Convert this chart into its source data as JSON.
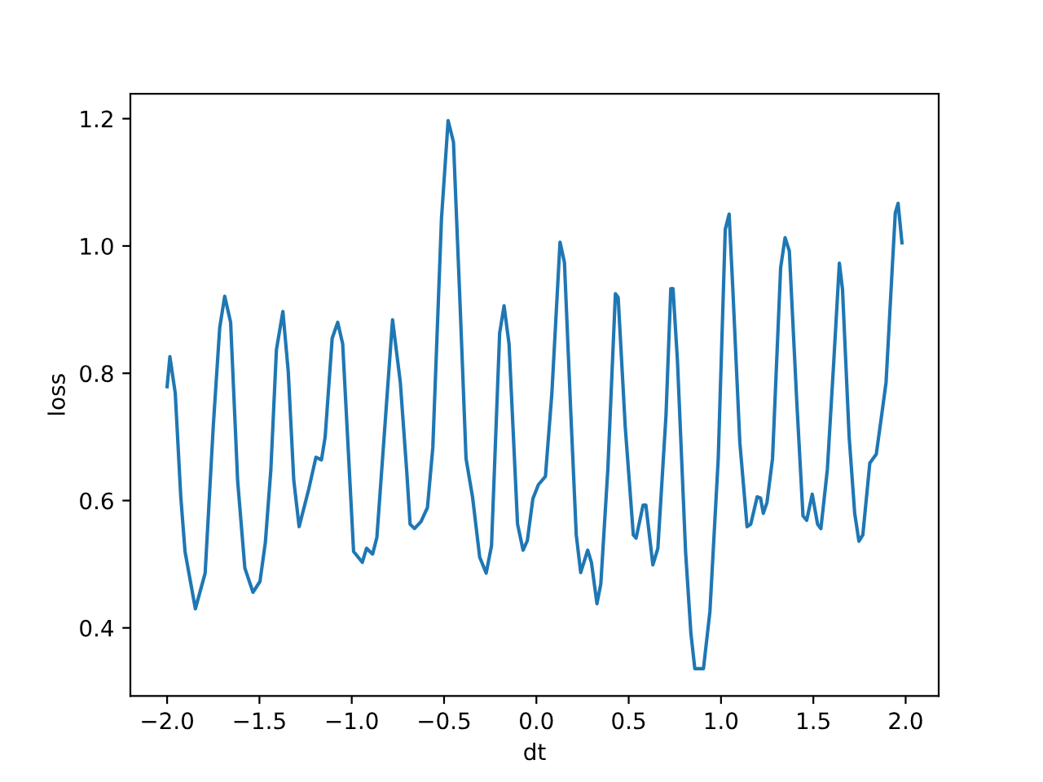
{
  "chart_data": {
    "type": "line",
    "xlabel": "dt",
    "ylabel": "loss",
    "x": [
      -2.0,
      -1.985,
      -1.956,
      -1.926,
      -1.903,
      -1.847,
      -1.794,
      -1.75,
      -1.715,
      -1.688,
      -1.656,
      -1.618,
      -1.579,
      -1.535,
      -1.497,
      -1.468,
      -1.438,
      -1.408,
      -1.373,
      -1.344,
      -1.314,
      -1.285,
      -1.232,
      -1.194,
      -1.164,
      -1.144,
      -1.106,
      -1.076,
      -1.049,
      -0.99,
      -0.943,
      -0.92,
      -0.887,
      -0.864,
      -0.779,
      -0.737,
      -0.702,
      -0.684,
      -0.66,
      -0.625,
      -0.59,
      -0.561,
      -0.514,
      -0.478,
      -0.449,
      -0.413,
      -0.381,
      -0.346,
      -0.307,
      -0.272,
      -0.243,
      -0.199,
      -0.175,
      -0.148,
      -0.102,
      -0.072,
      -0.049,
      -0.019,
      0.011,
      0.049,
      0.084,
      0.128,
      0.152,
      0.187,
      0.216,
      0.24,
      0.278,
      0.298,
      0.328,
      0.349,
      0.387,
      0.428,
      0.443,
      0.481,
      0.525,
      0.54,
      0.578,
      0.593,
      0.631,
      0.658,
      0.702,
      0.728,
      0.74,
      0.764,
      0.808,
      0.837,
      0.858,
      0.905,
      0.94,
      0.985,
      1.023,
      1.044,
      1.064,
      1.102,
      1.141,
      1.161,
      1.196,
      1.214,
      1.229,
      1.249,
      1.279,
      1.323,
      1.347,
      1.37,
      1.411,
      1.444,
      1.464,
      1.494,
      1.523,
      1.541,
      1.576,
      1.611,
      1.641,
      1.658,
      1.694,
      1.724,
      1.747,
      1.768,
      1.806,
      1.841,
      1.87,
      1.894,
      1.929,
      1.944,
      1.959,
      1.98
    ],
    "series": [
      {
        "color": "#1f77b4",
        "values": [
          0.779,
          0.826,
          0.769,
          0.606,
          0.52,
          0.43,
          0.486,
          0.717,
          0.872,
          0.921,
          0.88,
          0.631,
          0.494,
          0.456,
          0.473,
          0.534,
          0.649,
          0.837,
          0.897,
          0.803,
          0.632,
          0.559,
          0.619,
          0.668,
          0.664,
          0.7,
          0.855,
          0.88,
          0.846,
          0.52,
          0.503,
          0.525,
          0.516,
          0.542,
          0.884,
          0.786,
          0.645,
          0.563,
          0.556,
          0.567,
          0.589,
          0.683,
          1.043,
          1.197,
          1.163,
          0.906,
          0.666,
          0.606,
          0.511,
          0.486,
          0.529,
          0.863,
          0.906,
          0.846,
          0.563,
          0.522,
          0.537,
          0.603,
          0.625,
          0.638,
          0.769,
          1.006,
          0.974,
          0.734,
          0.546,
          0.487,
          0.522,
          0.503,
          0.438,
          0.469,
          0.649,
          0.925,
          0.919,
          0.717,
          0.546,
          0.541,
          0.593,
          0.593,
          0.499,
          0.525,
          0.734,
          0.933,
          0.933,
          0.82,
          0.52,
          0.391,
          0.336,
          0.336,
          0.426,
          0.666,
          1.026,
          1.05,
          0.932,
          0.691,
          0.559,
          0.563,
          0.606,
          0.604,
          0.58,
          0.597,
          0.666,
          0.966,
          1.013,
          0.992,
          0.752,
          0.576,
          0.569,
          0.61,
          0.563,
          0.556,
          0.649,
          0.82,
          0.973,
          0.932,
          0.7,
          0.58,
          0.536,
          0.546,
          0.659,
          0.673,
          0.734,
          0.786,
          0.974,
          1.052,
          1.067,
          1.005
        ]
      }
    ],
    "xlim": [
      -2.199,
      2.179
    ],
    "ylim": [
      0.293,
      1.239
    ],
    "xticks": [
      {
        "value": -2.0,
        "label": "−2.0"
      },
      {
        "value": -1.5,
        "label": "−1.5"
      },
      {
        "value": -1.0,
        "label": "−1.0"
      },
      {
        "value": -0.5,
        "label": "−0.5"
      },
      {
        "value": 0,
        "label": "0.0"
      },
      0.5,
      {
        "value": 1,
        "label": "1.0"
      },
      1.5,
      {
        "value": 2,
        "label": "2.0"
      }
    ],
    "yticks": [
      0.4,
      0.6,
      0.8,
      {
        "value": 1,
        "label": "1.0"
      },
      1.2
    ],
    "grid": false,
    "marker": "none",
    "line_style": "solid"
  }
}
